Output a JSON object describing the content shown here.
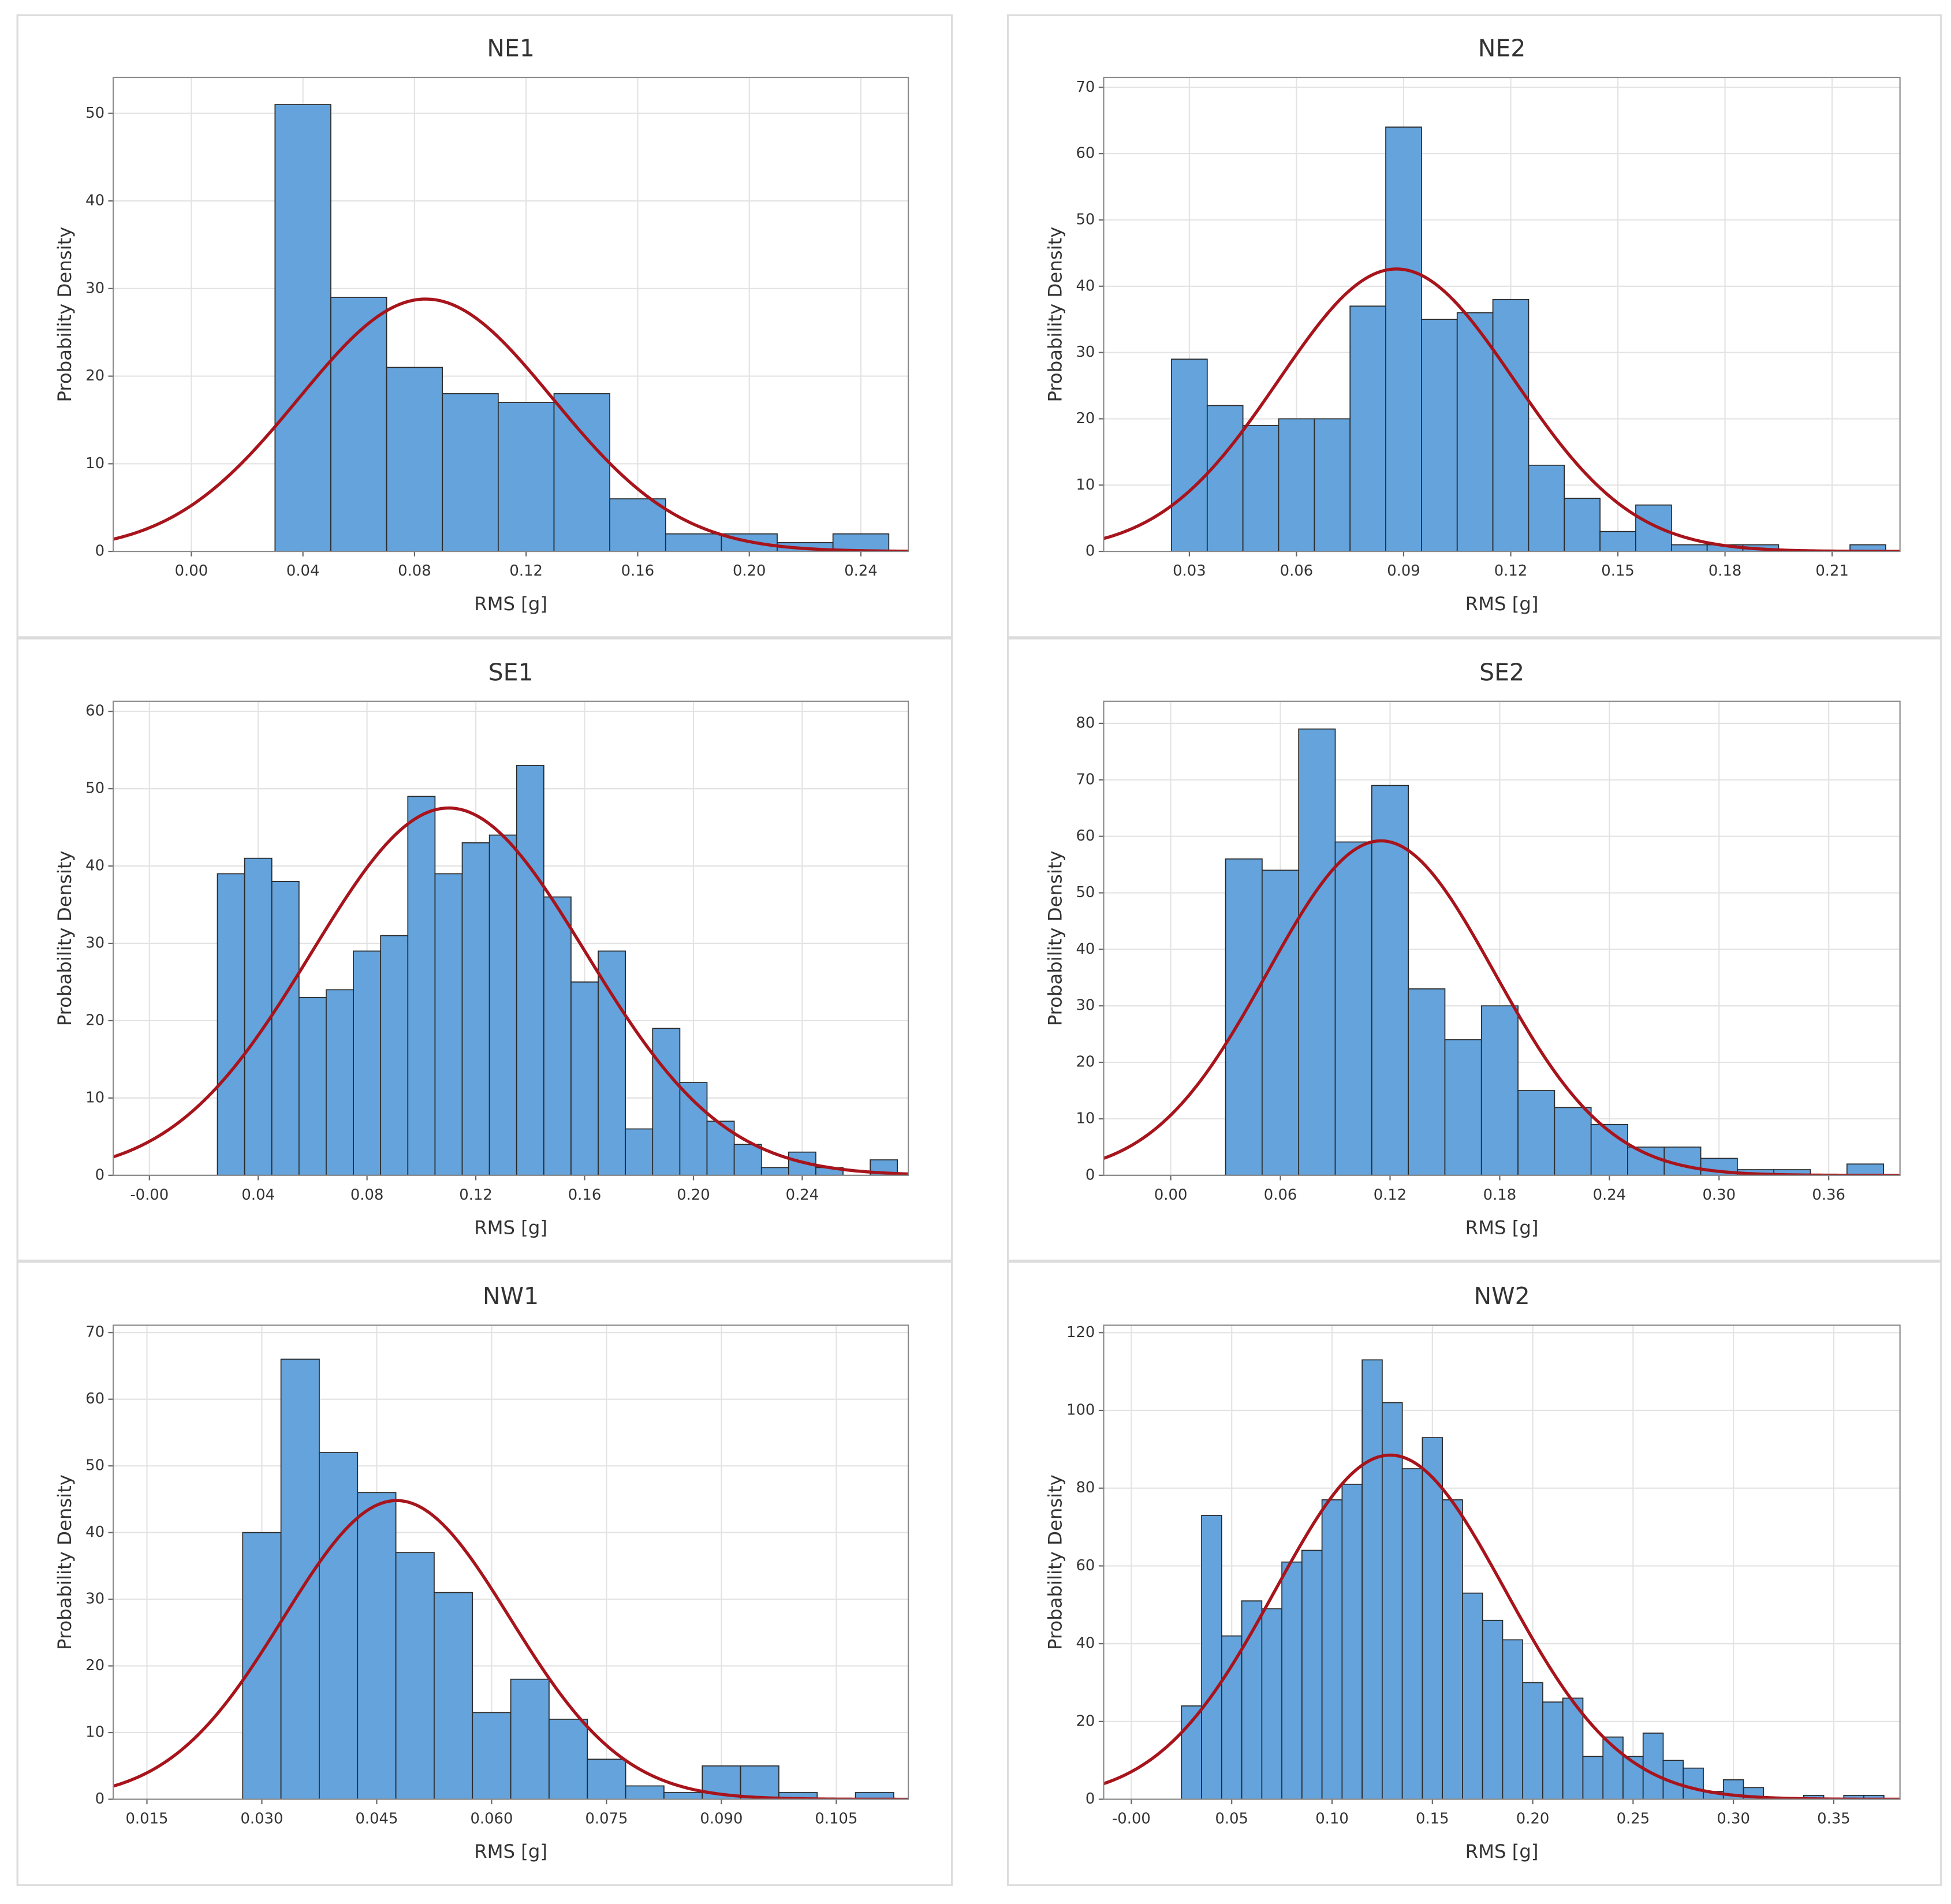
{
  "chart_data": [
    {
      "type": "histogram",
      "title": "NE1",
      "xlabel": "RMS [g]",
      "ylabel": "Probability Density",
      "bins": [
        0.03,
        0.05,
        0.07,
        0.09,
        0.11,
        0.13,
        0.15,
        0.17,
        0.19,
        0.21,
        0.23,
        0.25
      ],
      "counts": [
        51,
        29,
        21,
        18,
        17,
        18,
        6,
        2,
        2,
        1,
        2
      ],
      "color": "#64a3dc",
      "xlim": [
        -0.028,
        0.257
      ],
      "ylim": [
        0,
        54.1
      ],
      "xticks": [
        {
          "value": 0,
          "label": "0.00"
        },
        0.04,
        0.08,
        0.12,
        0.16,
        {
          "value": 0.2,
          "label": "0.20"
        },
        0.24
      ],
      "yticks": [
        0,
        10,
        20,
        30,
        40,
        50
      ],
      "grid": true,
      "fit": {
        "mean": 0.084,
        "sd": 0.0455,
        "peak": 28.8,
        "color": "#a8141c"
      }
    },
    {
      "type": "histogram",
      "title": "NE2",
      "xlabel": "RMS [g]",
      "ylabel": "Probability Density",
      "bins": [
        0.025,
        0.035,
        0.045,
        0.055,
        0.065,
        0.075,
        0.085,
        0.095,
        0.105,
        0.115,
        0.125,
        0.135,
        0.145,
        0.155,
        0.165,
        0.175,
        0.185,
        0.195,
        0.205,
        0.215,
        0.225
      ],
      "counts": [
        29,
        22,
        19,
        20,
        20,
        37,
        64,
        35,
        36,
        38,
        13,
        8,
        3,
        7,
        1,
        1,
        1,
        0,
        0,
        1
      ],
      "color": "#64a3dc",
      "xlim": [
        0.006,
        0.229
      ],
      "ylim": [
        0,
        71.5
      ],
      "xticks": [
        0.03,
        0.06,
        0.09,
        0.12,
        0.15,
        0.18,
        0.21
      ],
      "yticks": [
        0,
        10,
        20,
        30,
        40,
        50,
        60,
        70
      ],
      "grid": true,
      "fit": {
        "mean": 0.088,
        "sd": 0.033,
        "peak": 42.6,
        "color": "#a8141c"
      }
    },
    {
      "type": "histogram",
      "title": "SE1",
      "xlabel": "RMS [g]",
      "ylabel": "Probability Density",
      "bins": [
        0.025,
        0.035,
        0.045,
        0.055,
        0.065,
        0.075,
        0.085,
        0.095,
        0.105,
        0.115,
        0.125,
        0.135,
        0.145,
        0.155,
        0.165,
        0.175,
        0.185,
        0.195,
        0.205,
        0.215,
        0.225,
        0.235,
        0.245,
        0.255,
        0.265,
        0.275
      ],
      "counts": [
        39,
        41,
        38,
        23,
        24,
        29,
        31,
        49,
        39,
        43,
        44,
        53,
        36,
        25,
        29,
        6,
        19,
        12,
        7,
        4,
        1,
        3,
        1,
        0,
        2
      ],
      "color": "#64a3dc",
      "xlim": [
        -0.0133,
        0.279
      ],
      "ylim": [
        0,
        61.3
      ],
      "xticks": [
        {
          "value": 0,
          "label": "-0.00"
        },
        0.04,
        0.08,
        0.12,
        0.16,
        {
          "value": 0.2,
          "label": "0.20"
        },
        0.24
      ],
      "yticks": [
        0,
        10,
        20,
        30,
        40,
        50,
        60
      ],
      "grid": true,
      "fit": {
        "mean": 0.11,
        "sd": 0.0504,
        "peak": 47.5,
        "color": "#a8141c"
      }
    },
    {
      "type": "histogram",
      "title": "SE2",
      "xlabel": "RMS [g]",
      "ylabel": "Probability Density",
      "bins": [
        0.03,
        0.05,
        0.07,
        0.09,
        0.11,
        0.13,
        0.15,
        0.17,
        0.19,
        0.21,
        0.23,
        0.25,
        0.27,
        0.29,
        0.31,
        0.33,
        0.35,
        0.37,
        0.39
      ],
      "counts": [
        56,
        54,
        79,
        59,
        69,
        33,
        24,
        30,
        15,
        12,
        9,
        5,
        5,
        3,
        1,
        1,
        0,
        2
      ],
      "color": "#64a3dc",
      "xlim": [
        -0.0367,
        0.399
      ],
      "ylim": [
        0,
        83.9
      ],
      "xticks": [
        {
          "value": 0,
          "label": "0.00"
        },
        0.06,
        0.12,
        0.18,
        0.24,
        {
          "value": 0.3,
          "label": "0.30"
        },
        0.36
      ],
      "yticks": [
        0,
        10,
        20,
        30,
        40,
        50,
        60,
        70,
        80
      ],
      "grid": true,
      "fit": {
        "mean": 0.115,
        "sd": 0.0621,
        "peak": 59.2,
        "color": "#a8141c"
      }
    },
    {
      "type": "histogram",
      "title": "NW1",
      "xlabel": "RMS [g]",
      "ylabel": "Probability Density",
      "bins": [
        0.0275,
        0.0325,
        0.0375,
        0.0425,
        0.0475,
        0.0525,
        0.0575,
        0.0625,
        0.0675,
        0.0725,
        0.0775,
        0.0825,
        0.0875,
        0.0925,
        0.0975,
        0.1025,
        0.1075,
        0.1125
      ],
      "counts": [
        40,
        66,
        52,
        46,
        37,
        31,
        13,
        18,
        12,
        6,
        2,
        1,
        5,
        5,
        1,
        0,
        1
      ],
      "color": "#64a3dc",
      "xlim": [
        0.0106,
        0.1144
      ],
      "ylim": [
        0,
        71.1
      ],
      "xticks": [
        0.015,
        {
          "value": 0.03,
          "label": "0.030"
        },
        0.045,
        {
          "value": 0.06,
          "label": "0.060"
        },
        0.075,
        {
          "value": 0.09,
          "label": "0.090"
        },
        0.105
      ],
      "yticks": [
        0,
        10,
        20,
        30,
        40,
        50,
        60,
        70
      ],
      "grid": true,
      "fit": {
        "mean": 0.0476,
        "sd": 0.0148,
        "peak": 44.8,
        "color": "#a8141c"
      }
    },
    {
      "type": "histogram",
      "title": "NW2",
      "xlabel": "RMS [g]",
      "ylabel": "Probability Density",
      "bins": [
        0.025,
        0.035,
        0.045,
        0.055,
        0.065,
        0.075,
        0.085,
        0.095,
        0.105,
        0.115,
        0.125,
        0.135,
        0.145,
        0.155,
        0.165,
        0.175,
        0.185,
        0.195,
        0.205,
        0.215,
        0.225,
        0.235,
        0.245,
        0.255,
        0.265,
        0.275,
        0.285,
        0.295,
        0.305,
        0.315,
        0.325,
        0.335,
        0.345,
        0.355,
        0.365,
        0.375
      ],
      "counts": [
        24,
        73,
        42,
        51,
        49,
        61,
        64,
        77,
        81,
        113,
        102,
        85,
        93,
        77,
        53,
        46,
        41,
        30,
        25,
        26,
        11,
        16,
        11,
        17,
        10,
        8,
        2,
        5,
        3,
        0,
        0,
        1,
        0,
        1,
        1
      ],
      "color": "#64a3dc",
      "xlim": [
        -0.0138,
        0.383
      ],
      "ylim": [
        0,
        121.9
      ],
      "xticks": [
        {
          "value": 0,
          "label": "-0.00"
        },
        0.05,
        {
          "value": 0.1,
          "label": "0.10"
        },
        0.15,
        {
          "value": 0.2,
          "label": "0.20"
        },
        0.25,
        {
          "value": 0.3,
          "label": "0.30"
        },
        0.35
      ],
      "yticks": [
        0,
        20,
        40,
        60,
        80,
        100,
        120
      ],
      "grid": true,
      "fit": {
        "mean": 0.129,
        "sd": 0.0574,
        "peak": 88.5,
        "color": "#a8141c"
      }
    }
  ]
}
